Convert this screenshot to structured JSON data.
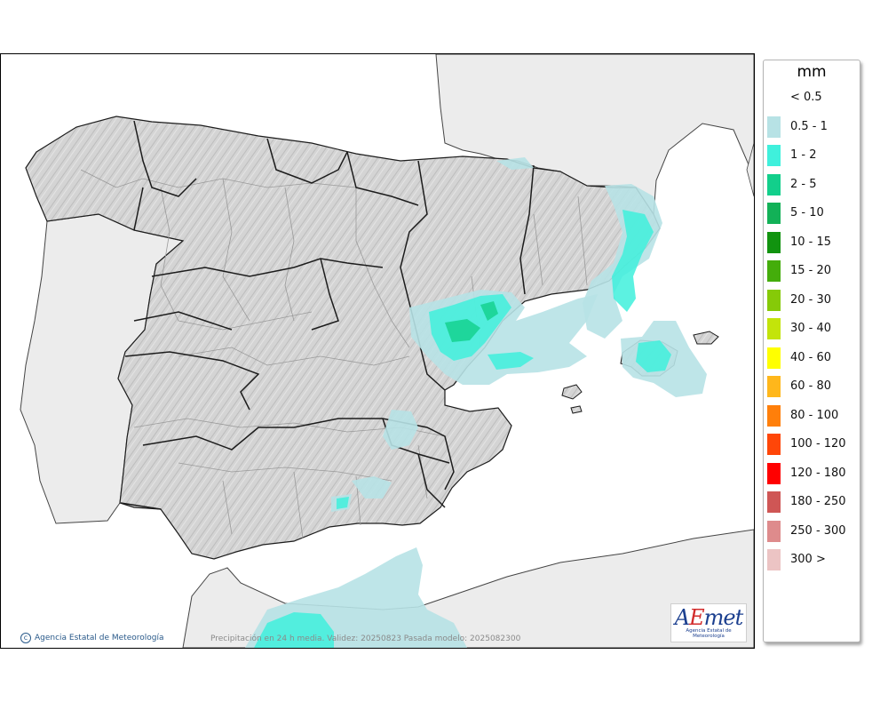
{
  "map": {
    "credit": "Agencia Estatal de Meteorología",
    "caption": "Precipitación en 24 h media. Validez: 20250823 Pasada modelo: 2025082300",
    "logo": {
      "text": "AEmet",
      "subtitle": "Agencia Estatal de Meteorología"
    },
    "colors": {
      "land": "#d4d4d4",
      "foreign": "#ececec",
      "sea": "#ffffff",
      "border": "#1c1c1c",
      "province": "#9a9a9a"
    }
  },
  "legend": {
    "unit": "mm",
    "items": [
      {
        "label": "< 0.5",
        "color": null
      },
      {
        "label": "0.5 - 1",
        "color": "#b7e2e5"
      },
      {
        "label": "1 - 2",
        "color": "#3ff0dc"
      },
      {
        "label": "2 - 5",
        "color": "#12cf8b"
      },
      {
        "label": "5 - 10",
        "color": "#12b157"
      },
      {
        "label": "10 - 15",
        "color": "#11930f"
      },
      {
        "label": "15 - 20",
        "color": "#44ad0b"
      },
      {
        "label": "20 - 30",
        "color": "#86ca08"
      },
      {
        "label": "30 - 40",
        "color": "#c3e40a"
      },
      {
        "label": "40 - 60",
        "color": "#ffff00"
      },
      {
        "label": "60 - 80",
        "color": "#ffb71b"
      },
      {
        "label": "80 - 100",
        "color": "#ff7f0a"
      },
      {
        "label": "100 - 120",
        "color": "#ff4608"
      },
      {
        "label": "120 - 180",
        "color": "#ff0000"
      },
      {
        "label": "180 - 250",
        "color": "#cf5655"
      },
      {
        "label": "250 - 300",
        "color": "#de8b8c"
      },
      {
        "label": "300 >",
        "color": "#ecc4c4"
      }
    ]
  }
}
